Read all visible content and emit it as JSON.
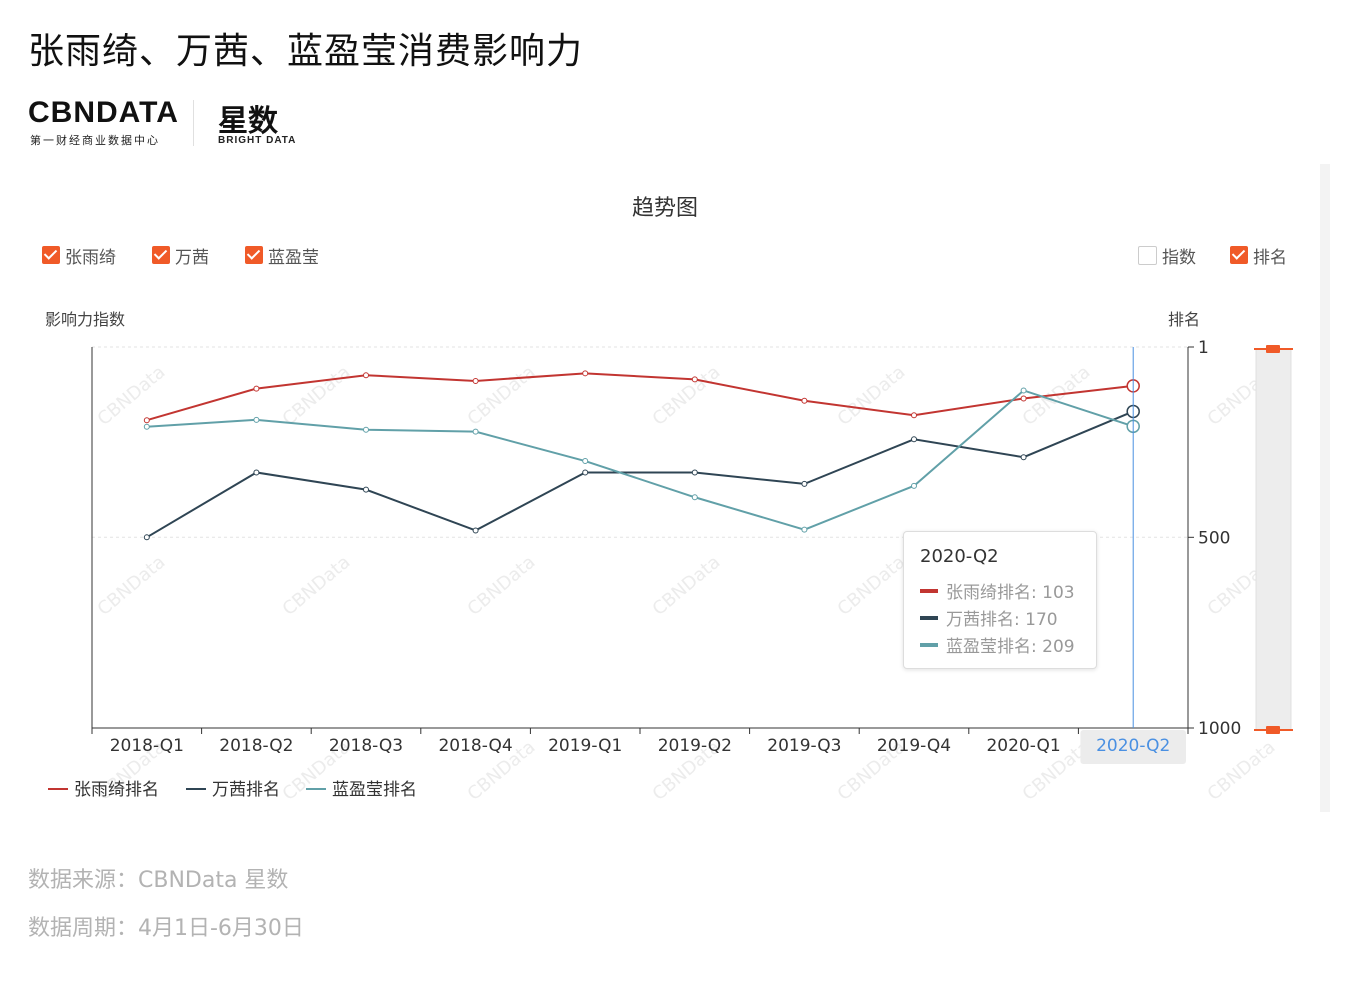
{
  "page": {
    "title": "张雨绮、万茜、蓝盈莹消费影响力",
    "logo": {
      "brand": "CBNDATA",
      "brand_sub": "第一财经商业数据中心",
      "product": "星数",
      "product_sub": "BRIGHT DATA"
    },
    "footer": {
      "source": "数据来源：CBNData 星数",
      "period": "数据周期：4月1日-6月30日"
    }
  },
  "toggles": {
    "series": [
      {
        "label": "张雨绮",
        "checked": true
      },
      {
        "label": "万茜",
        "checked": true
      },
      {
        "label": "蓝盈莹",
        "checked": true
      }
    ],
    "metrics": [
      {
        "label": "指数",
        "checked": false
      },
      {
        "label": "排名",
        "checked": true
      }
    ]
  },
  "tooltip": {
    "title": "2020-Q2",
    "rows": [
      {
        "label": "张雨绮排名: 103",
        "color": "#c23531"
      },
      {
        "label": "万茜排名: 170",
        "color": "#2f4554"
      },
      {
        "label": "蓝盈莹排名: 209",
        "color": "#61a0a8"
      }
    ]
  },
  "watermark": "CBNData",
  "chart_data": {
    "type": "line",
    "title": "趋势图",
    "ylabel_left": "影响力指数",
    "ylabel_right": "排名",
    "categories": [
      "2018-Q1",
      "2018-Q2",
      "2018-Q3",
      "2018-Q4",
      "2019-Q1",
      "2019-Q2",
      "2019-Q3",
      "2019-Q4",
      "2020-Q1",
      "2020-Q2"
    ],
    "highlighted_category": "2020-Q2",
    "y_right": {
      "min": 1,
      "max": 1000,
      "inverse": true,
      "ticks": [
        1,
        500,
        1000
      ]
    },
    "grid": true,
    "legend_position": "bottom-left",
    "series": [
      {
        "name": "张雨绮排名",
        "color": "#c23531",
        "values": [
          193,
          110,
          75,
          90,
          70,
          86,
          142,
          180,
          136,
          103
        ]
      },
      {
        "name": "万茜排名",
        "color": "#2f4554",
        "values": [
          500,
          330,
          375,
          482,
          330,
          330,
          360,
          243,
          290,
          170
        ]
      },
      {
        "name": "蓝盈莹排名",
        "color": "#61a0a8",
        "values": [
          210,
          192,
          218,
          223,
          300,
          395,
          480,
          365,
          115,
          209
        ]
      }
    ]
  }
}
